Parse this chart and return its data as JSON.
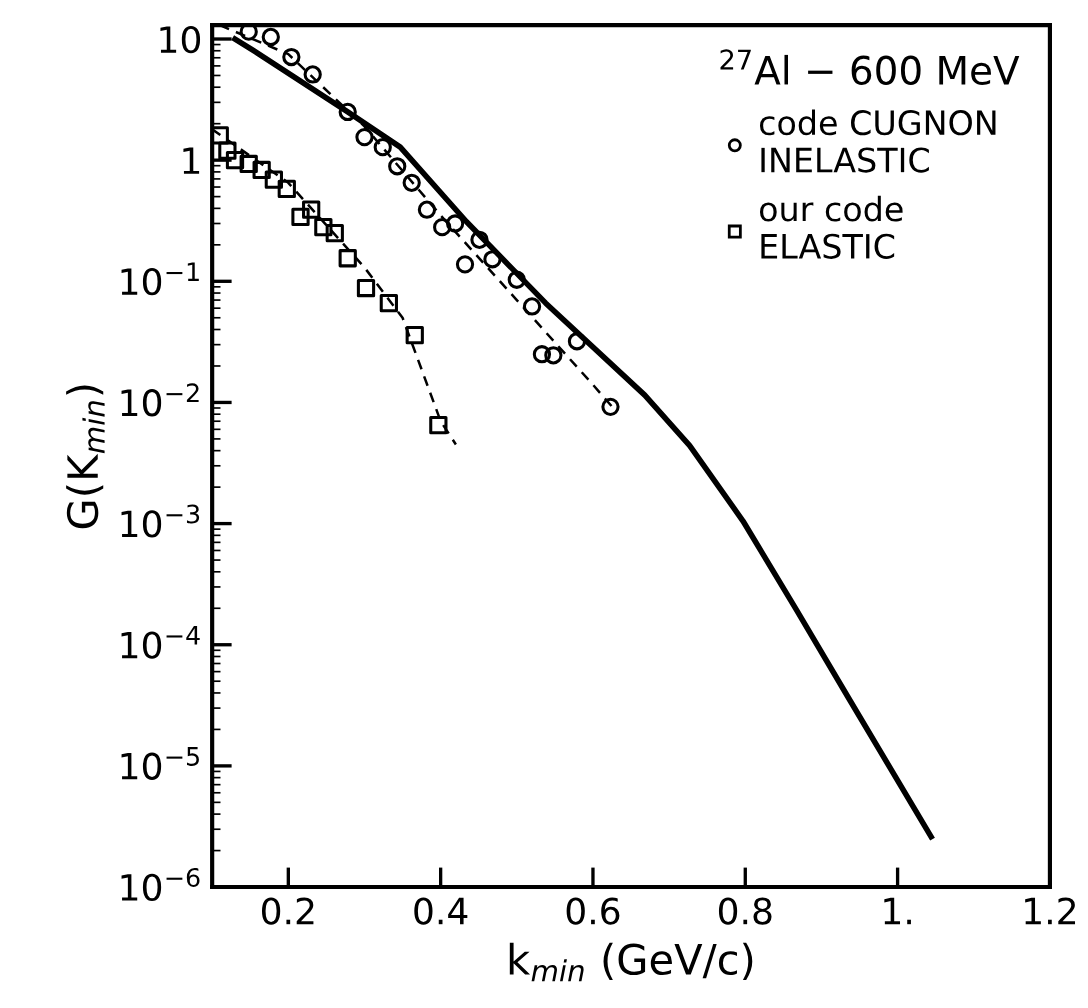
{
  "chart_data": {
    "type": "scatter",
    "xlabel": "k$_{min}$ (GeV/c)",
    "ylabel": "G(K$_{min}$)",
    "legend_title": "$^{27}$Al − 600 MeV",
    "log": "y",
    "xlim": [
      0.1,
      1.2
    ],
    "ylim": [
      1e-06,
      13
    ],
    "xticks": [
      0.2,
      0.4,
      0.6,
      0.8,
      {
        "value": 1.0,
        "label": "1."
      },
      1.2
    ],
    "yticks": [
      {
        "value": 1e-06,
        "label": "10$^{−6}$"
      },
      {
        "value": 1e-05,
        "label": "10$^{−5}$"
      },
      {
        "value": 0.0001,
        "label": "10$^{−4}$"
      },
      {
        "value": 0.001,
        "label": "10$^{−3}$"
      },
      {
        "value": 0.01,
        "label": "10$^{−2}$"
      },
      {
        "value": 0.1,
        "label": "10$^{−1}$"
      },
      1,
      10
    ],
    "grid": false,
    "legend": "top right",
    "series": [
      {
        "type": "line",
        "color": "#000000",
        "line_style": "solid",
        "x": [
          0.13,
          0.156,
          0.278,
          0.347,
          0.434,
          0.538,
          0.668,
          0.727,
          0.797,
          0.867,
          0.936,
          1.044
        ],
        "values": [
          10,
          7.9,
          2.5,
          1.28,
          0.31,
          0.066,
          0.0115,
          0.0044,
          0.00105,
          0.000195,
          3.6e-05,
          2.6e-06
        ]
      },
      {
        "type": "line",
        "color": "#000000",
        "line_style": "dashed",
        "x": [
          0.11,
          0.2,
          0.3,
          0.4,
          0.5,
          0.6,
          0.63
        ],
        "values": [
          13,
          7.5,
          1.9,
          0.35,
          0.07,
          0.014,
          0.0085
        ]
      },
      {
        "type": "line",
        "color": "#000000",
        "line_style": "dashed",
        "x": [
          0.1,
          0.2,
          0.3,
          0.35,
          0.4,
          0.42
        ],
        "values": [
          1.8,
          0.65,
          0.13,
          0.05,
          0.007,
          0.0045
        ]
      },
      {
        "name": "code CUGNON\nINELASTIC",
        "marker": "circle",
        "color": "#000000",
        "x": [
          0.148,
          0.177,
          0.204,
          0.232,
          0.278,
          0.3,
          0.324,
          0.343,
          0.362,
          0.382,
          0.402,
          0.419,
          0.432,
          0.451,
          0.468,
          0.5,
          0.52,
          0.533,
          0.548,
          0.579,
          0.623
        ],
        "values": [
          11.5,
          10.4,
          7.1,
          5.1,
          2.5,
          1.55,
          1.28,
          0.89,
          0.65,
          0.39,
          0.28,
          0.3,
          0.138,
          0.22,
          0.152,
          0.103,
          0.062,
          0.025,
          0.0245,
          0.032,
          0.0092
        ]
      },
      {
        "name": "our code\nELASTIC",
        "marker": "square",
        "color": "#000000",
        "x": [
          0.11,
          0.12,
          0.13,
          0.148,
          0.165,
          0.181,
          0.198,
          0.216,
          0.23,
          0.246,
          0.261,
          0.278,
          0.302,
          0.332,
          0.366,
          0.397
        ],
        "values": [
          1.6,
          1.2,
          1.0,
          0.93,
          0.83,
          0.69,
          0.58,
          0.34,
          0.39,
          0.28,
          0.25,
          0.155,
          0.088,
          0.066,
          0.036,
          0.0065
        ]
      }
    ]
  }
}
